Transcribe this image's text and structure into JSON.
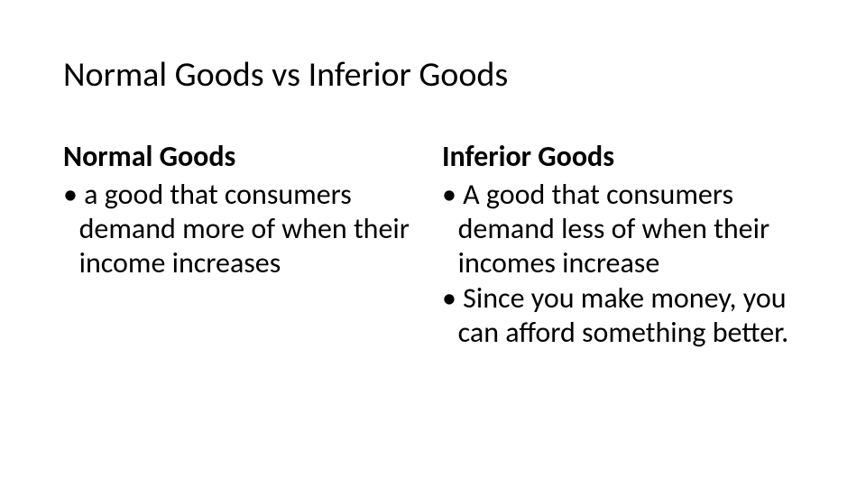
{
  "title": "Normal Goods vs Inferior Goods",
  "left": {
    "heading": "Normal Goods",
    "bullets": [
      "a good that consumers demand more of when their income increases"
    ]
  },
  "right": {
    "heading": "Inferior Goods",
    "bullets": [
      "A good that consumers demand less of when their incomes increase",
      "Since you make money, you can afford something better."
    ]
  },
  "colors": {
    "background": "#ffffff",
    "text": "#000000"
  },
  "fonts": {
    "title_size_pt": 38,
    "heading_size_pt": 32,
    "body_size_pt": 32,
    "family": "Calibri"
  }
}
